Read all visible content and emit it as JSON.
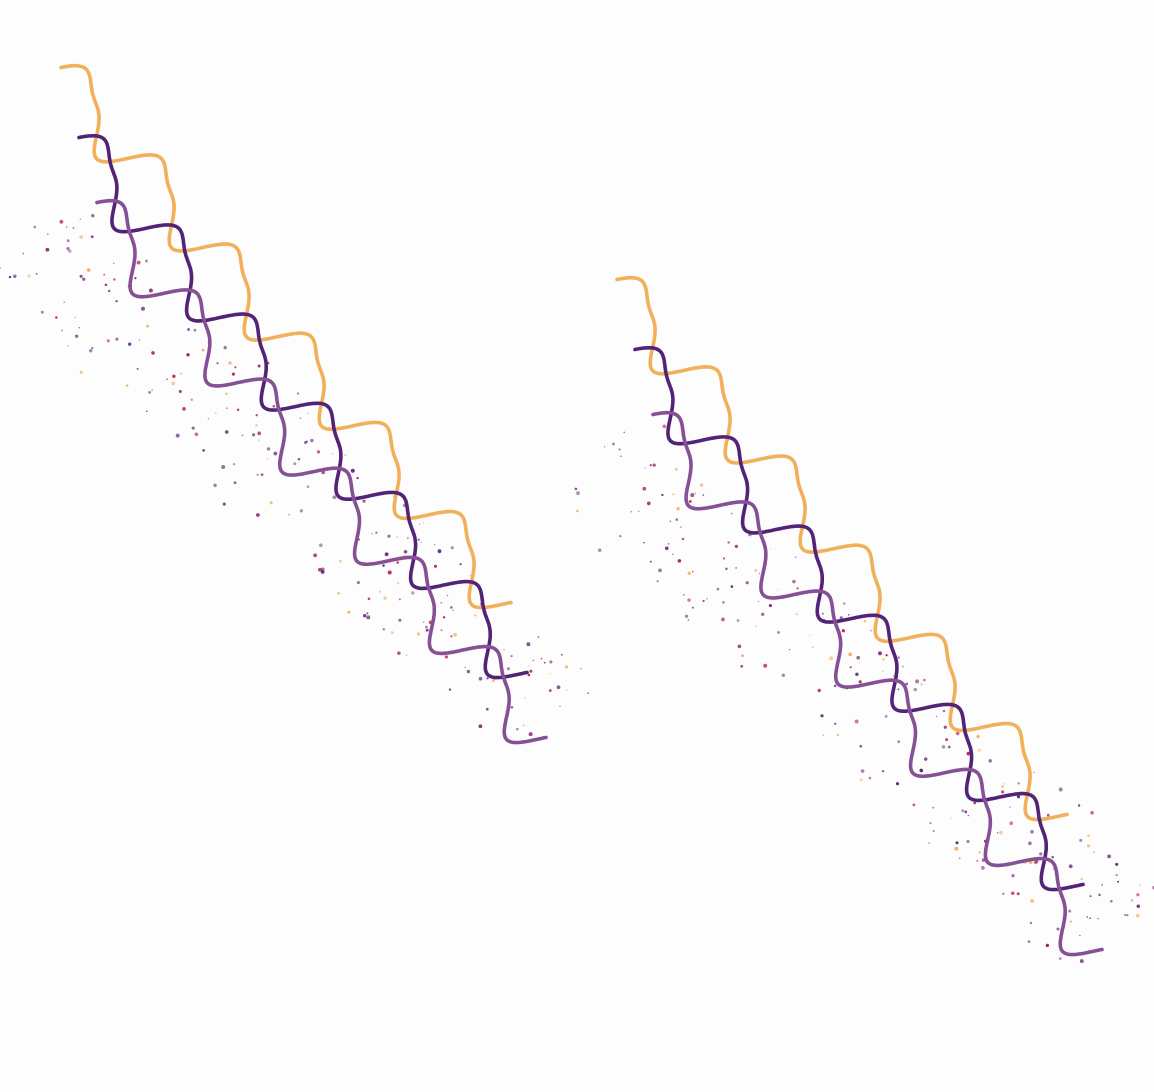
{
  "artwork": {
    "background_color": "#fdfdfd",
    "palette": {
      "gold": "#f1b05a",
      "dark_purple": "#532377",
      "mid_purple": "#865096",
      "crimson": "#b21f4f",
      "magenta": "#8e2e7b"
    },
    "panel_count": 2,
    "wave_strands": [
      {
        "name": "gold-strand",
        "color_key": "gold"
      },
      {
        "name": "dark-purple-strand",
        "color_key": "dark_purple"
      },
      {
        "name": "mid-purple-strand",
        "color_key": "mid_purple"
      }
    ],
    "dot_colors": [
      "crimson",
      "magenta",
      "gold",
      "dark_purple",
      "mid_purple"
    ]
  }
}
